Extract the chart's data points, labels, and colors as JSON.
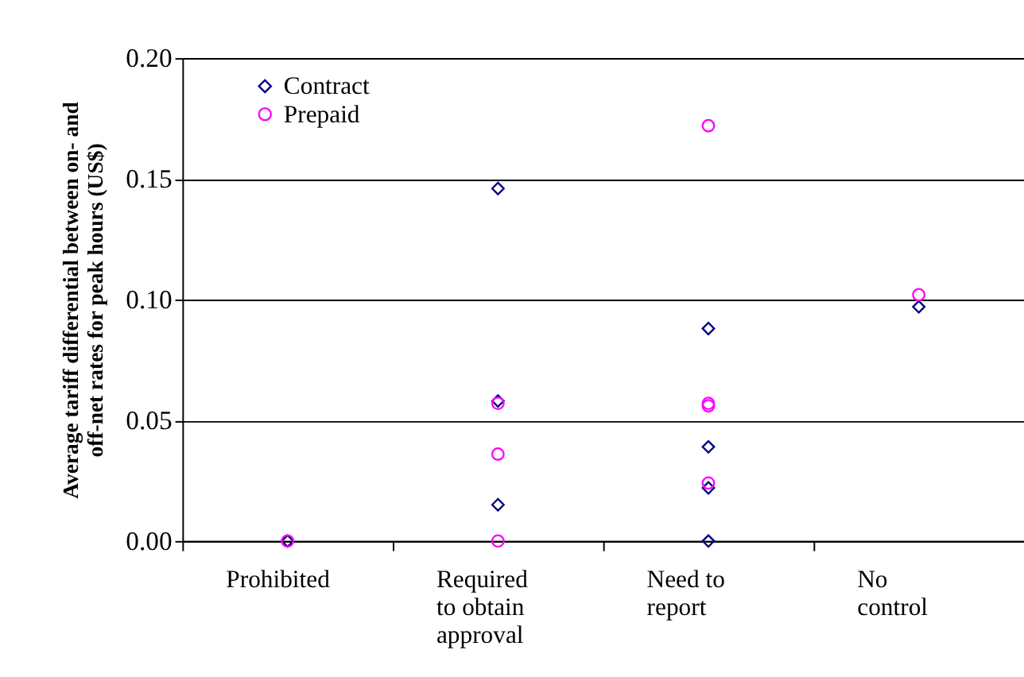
{
  "chart_data": {
    "type": "scatter",
    "ylabel": "Average tariff differential between on- and off-net rates for peak hours (US$)",
    "categories": [
      "Prohibited",
      "Required to obtain approval",
      "Need to report",
      "No control"
    ],
    "series": [
      {
        "name": "Contract",
        "color": "#000080",
        "marker": "diamond",
        "x": [
          "Prohibited",
          "Required to obtain approval",
          "Required to obtain approval",
          "Required to obtain approval",
          "Need to report",
          "Need to report",
          "Need to report",
          "Need to report",
          "No control"
        ],
        "values": [
          0,
          0.146,
          0.058,
          0.015,
          0.088,
          0.039,
          0.022,
          0,
          0.097
        ]
      },
      {
        "name": "Prepaid",
        "color": "#ff00ff",
        "marker": "circle",
        "x": [
          "Prohibited",
          "Required to obtain approval",
          "Required to obtain approval",
          "Required to obtain approval",
          "Need to report",
          "Need to report",
          "Need to report",
          "Need to report",
          "No control"
        ],
        "values": [
          0,
          0.057,
          0.036,
          0,
          0.172,
          0.057,
          0.056,
          0.024,
          0.102
        ]
      }
    ],
    "ylim": [
      0,
      0.2
    ],
    "yticks": [
      {
        "value": 0,
        "label": "0.00"
      },
      {
        "value": 0.05,
        "label": "0.05"
      },
      {
        "value": 0.1,
        "label": "0.10"
      },
      {
        "value": 0.15,
        "label": "0.15"
      },
      {
        "value": 0.2,
        "label": "0.20"
      }
    ],
    "grid": "y",
    "legend": "top left"
  }
}
